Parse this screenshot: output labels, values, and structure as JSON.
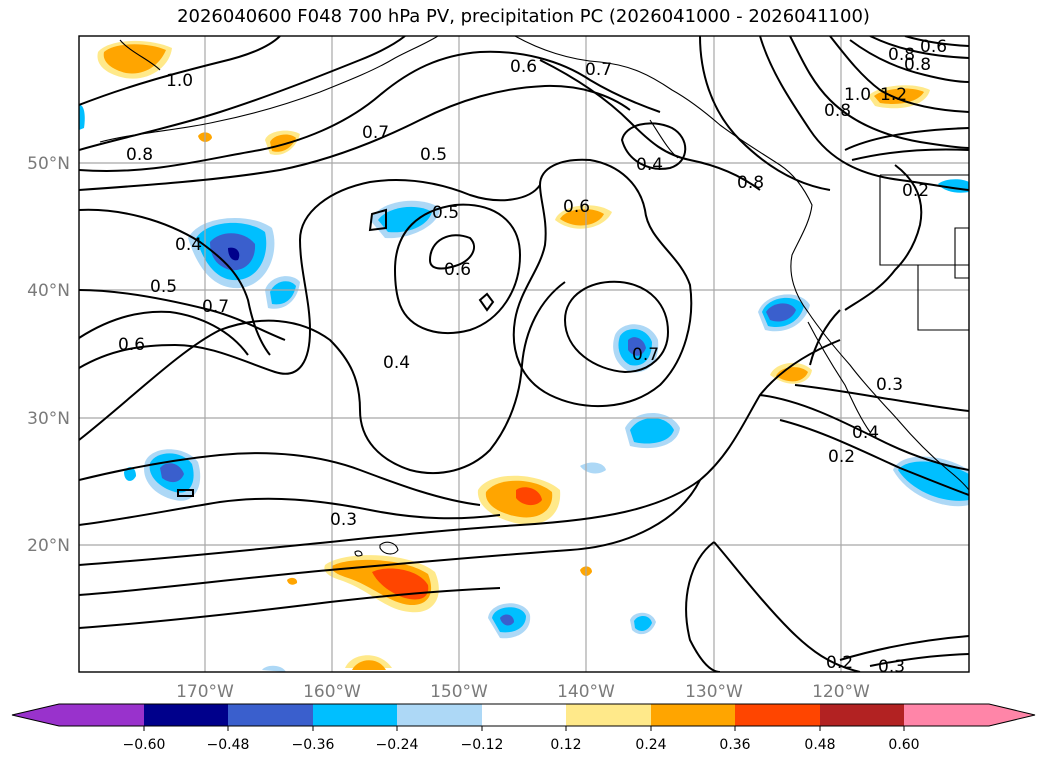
{
  "title": "2026040600 F048 700 hPa PV, precipitation PC (2026041000 - 2026041100)",
  "axes": {
    "lat_labels": [
      "50°N",
      "40°N",
      "30°N",
      "20°N"
    ],
    "lon_labels": [
      "170°W",
      "160°W",
      "150°W",
      "140°W",
      "130°W",
      "120°W"
    ]
  },
  "contour_labels": [
    "1.0",
    "0.8",
    "0.7",
    "0.6",
    "0.7",
    "0.5",
    "0.4",
    "0.5",
    "0.6",
    "0.6",
    "0.4",
    "0.5",
    "0.7",
    "0.6",
    "0.4",
    "0.7",
    "0.3",
    "0.2",
    "0.4",
    "0.3",
    "0.2",
    "0.3",
    "0.8",
    "1.0",
    "0.8",
    "0.8",
    "1.2",
    "0.8",
    "0.6",
    "0.2"
  ],
  "colorbar": {
    "colors": [
      "#9932cc",
      "#00008b",
      "#3a5fcd",
      "#00bfff",
      "#add8f6",
      "#ffffff",
      "#ffe98a",
      "#ffa500",
      "#ff4500",
      "#b22222",
      "#ff85a8"
    ],
    "tick_labels": [
      "−0.60",
      "−0.48",
      "−0.36",
      "−0.24",
      "−0.12",
      "0.12",
      "0.24",
      "0.36",
      "0.48",
      "0.60"
    ]
  }
}
